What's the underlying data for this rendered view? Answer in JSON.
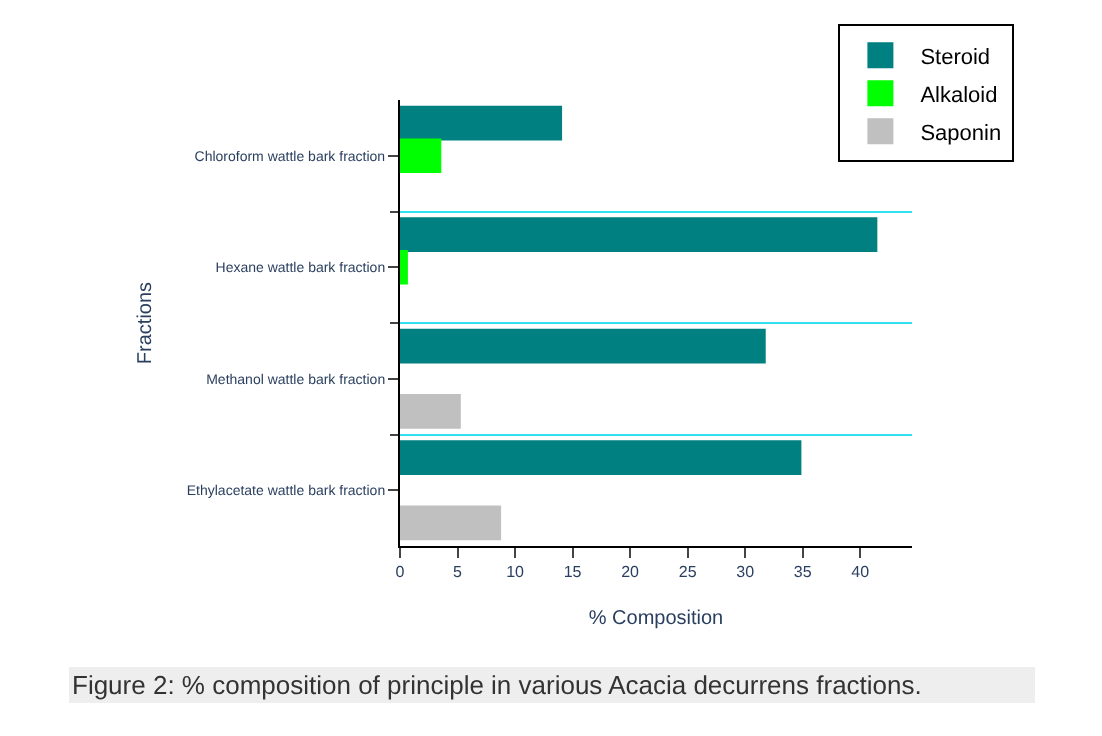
{
  "chart_data": {
    "type": "bar",
    "orientation": "horizontal",
    "xlabel": "% Composition",
    "ylabel": "Fractions",
    "categories": [
      "Chloroform wattle bark fraction",
      "Hexane wattle bark fraction",
      "Methanol wattle bark fraction",
      "Ethylacetate wattle bark fraction"
    ],
    "series": [
      {
        "name": "Steroid",
        "color": "#008080",
        "values": [
          14.0,
          41.4,
          31.7,
          34.8
        ]
      },
      {
        "name": "Alkaloid",
        "color": "#00ff00",
        "values": [
          3.5,
          0.6,
          null,
          null
        ]
      },
      {
        "name": "Saponin",
        "color": "#c0c0c0",
        "values": [
          null,
          null,
          5.2,
          8.7
        ]
      }
    ],
    "xlim": [
      0,
      44.5
    ],
    "xticks": [
      0,
      5,
      10,
      15,
      20,
      25,
      30,
      35,
      40
    ],
    "grid": "y",
    "legend": "top right",
    "annotations": [
      "Figure 2: % composition of principle in various Acacia decurrens fractions."
    ]
  }
}
